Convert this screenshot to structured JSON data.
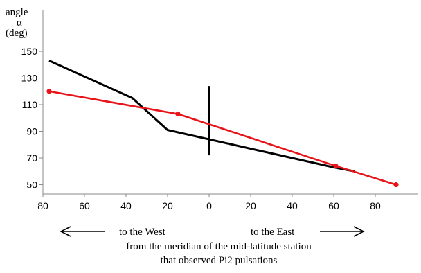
{
  "chart_data": {
    "type": "line",
    "y_axis_label": [
      "angle",
      "α",
      "(deg)"
    ],
    "y_ticks": [
      150,
      130,
      110,
      90,
      70,
      50
    ],
    "ylim": [
      43,
      163
    ],
    "x_ticks": [
      80,
      60,
      40,
      20,
      0,
      20,
      40,
      60,
      80
    ],
    "x_range_signed": [
      -80,
      90
    ],
    "x_note": "negative = West of the meridian, positive = East",
    "grid": false,
    "series": [
      {
        "color": "#000000",
        "x": [
          -77,
          -37,
          -20,
          0,
          60,
          70
        ],
        "y": [
          143,
          115,
          91,
          84,
          63,
          60
        ]
      },
      {
        "color": "#e8141a",
        "markers": true,
        "x": [
          -77,
          -15,
          61,
          90
        ],
        "y": [
          120,
          103,
          64,
          50
        ]
      }
    ],
    "meridian_line": {
      "x": 0,
      "y_from": 72,
      "y_to": 124,
      "color": "#000000"
    },
    "west_label": "to the West",
    "east_label": "to the East",
    "caption_line1": "from the meridian of the mid-latitude station",
    "caption_line2": "that observed Pi2 pulsations"
  }
}
